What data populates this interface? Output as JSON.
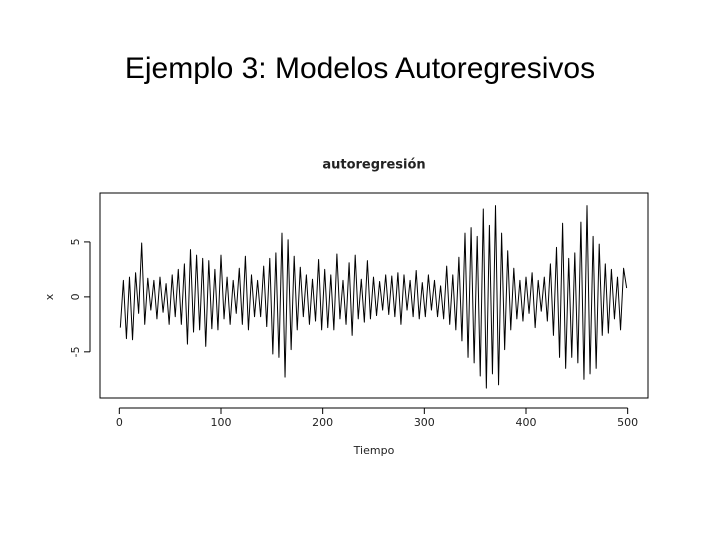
{
  "header": {
    "title": "Ejemplo 3: Modelos Autoregresivos"
  },
  "chart_data": {
    "type": "line",
    "title": "autoregresión",
    "x_label": "Tiempo",
    "y_label": "x",
    "x": [
      1,
      4,
      7,
      10,
      13,
      16,
      19,
      22,
      25,
      28,
      31,
      34,
      37,
      40,
      43,
      46,
      49,
      52,
      55,
      58,
      61,
      64,
      67,
      70,
      73,
      76,
      79,
      82,
      85,
      88,
      91,
      94,
      97,
      100,
      103,
      106,
      109,
      112,
      115,
      118,
      121,
      124,
      127,
      130,
      133,
      136,
      139,
      142,
      145,
      148,
      151,
      154,
      157,
      160,
      163,
      166,
      169,
      172,
      175,
      178,
      181,
      184,
      187,
      190,
      193,
      196,
      199,
      202,
      205,
      208,
      211,
      214,
      217,
      220,
      223,
      226,
      229,
      232,
      235,
      238,
      241,
      244,
      247,
      250,
      253,
      256,
      259,
      262,
      265,
      268,
      271,
      274,
      277,
      280,
      283,
      286,
      289,
      292,
      295,
      298,
      301,
      304,
      307,
      310,
      313,
      316,
      319,
      322,
      325,
      328,
      331,
      334,
      337,
      340,
      343,
      346,
      349,
      352,
      355,
      358,
      361,
      364,
      367,
      370,
      373,
      376,
      379,
      382,
      385,
      388,
      391,
      394,
      397,
      400,
      403,
      406,
      409,
      412,
      415,
      418,
      421,
      424,
      427,
      430,
      433,
      436,
      439,
      442,
      445,
      448,
      451,
      454,
      457,
      460,
      463,
      466,
      469,
      472,
      475,
      478,
      481,
      484,
      487,
      490,
      493,
      496,
      499
    ],
    "values": [
      -2.8,
      1.5,
      -3.8,
      1.8,
      -3.9,
      2.2,
      -1.5,
      4.9,
      -2.5,
      1.7,
      -1.2,
      1.5,
      -2.0,
      1.8,
      -1.4,
      1.2,
      -2.5,
      2.0,
      -1.8,
      2.5,
      -2.5,
      3.0,
      -4.3,
      4.3,
      -3.2,
      3.8,
      -3.0,
      3.5,
      -4.5,
      3.3,
      -2.9,
      2.5,
      -3.0,
      3.8,
      -2.0,
      1.8,
      -2.5,
      1.5,
      -1.5,
      2.6,
      -2.5,
      3.7,
      -3.0,
      2.0,
      -1.8,
      1.5,
      -1.8,
      2.8,
      -2.7,
      3.5,
      -5.2,
      4.0,
      -5.5,
      5.8,
      -7.3,
      5.2,
      -4.8,
      3.7,
      -3.0,
      2.7,
      -1.8,
      2.0,
      -2.5,
      1.6,
      -2.2,
      3.4,
      -3.0,
      2.5,
      -2.8,
      2.0,
      -3.0,
      3.9,
      -2.0,
      1.5,
      -2.5,
      3.1,
      -3.5,
      3.8,
      -2.0,
      1.6,
      -2.3,
      3.3,
      -2.0,
      1.8,
      -1.7,
      1.4,
      -1.2,
      2.0,
      -1.6,
      1.9,
      -1.8,
      2.2,
      -2.5,
      2.0,
      -1.2,
      1.5,
      -1.8,
      2.4,
      -2.0,
      1.3,
      -1.8,
      2.0,
      -1.2,
      1.5,
      -1.8,
      1.0,
      -2.0,
      2.8,
      -2.5,
      2.0,
      -3.0,
      3.6,
      -4.0,
      5.8,
      -5.5,
      6.3,
      -6.0,
      5.5,
      -7.2,
      8.0,
      -8.3,
      6.5,
      -7.0,
      8.3,
      -8.0,
      5.8,
      -4.8,
      4.2,
      -3.0,
      2.6,
      -2.0,
      1.5,
      -2.2,
      1.8,
      -1.5,
      2.2,
      -2.8,
      1.5,
      -1.3,
      1.8,
      -2.2,
      3.0,
      -3.5,
      4.5,
      -5.5,
      6.7,
      -6.5,
      3.5,
      -5.5,
      4.0,
      -6.0,
      6.8,
      -7.5,
      8.3,
      -7.0,
      5.5,
      -6.5,
      4.8,
      -3.5,
      3.0,
      -3.3,
      2.5,
      -2.0,
      1.8,
      -3.0,
      2.6,
      0.8
    ],
    "color": "#000000",
    "xlim": [
      -19,
      520
    ],
    "ylim": [
      -9.2,
      9.45
    ],
    "xticks": [
      0,
      100,
      200,
      300,
      400,
      500
    ],
    "yticks": [
      -5,
      0,
      5
    ]
  }
}
